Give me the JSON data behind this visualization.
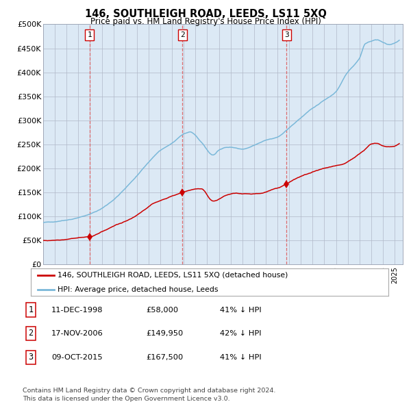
{
  "title": "146, SOUTHLEIGH ROAD, LEEDS, LS11 5XQ",
  "subtitle": "Price paid vs. HM Land Registry's House Price Index (HPI)",
  "background_color": "#ffffff",
  "plot_bg_color": "#dce9f5",
  "hpi_color": "#7ab8d9",
  "price_color": "#cc0000",
  "marker_color": "#cc0000",
  "vline_color": "#dd5555",
  "sale_prices": [
    58000,
    149950,
    167500
  ],
  "sale_labels": [
    "1",
    "2",
    "3"
  ],
  "sale_year_nums": [
    1998.96,
    2006.88,
    2015.77
  ],
  "legend_entries": [
    "146, SOUTHLEIGH ROAD, LEEDS, LS11 5XQ (detached house)",
    "HPI: Average price, detached house, Leeds"
  ],
  "table_rows": [
    [
      "1",
      "11-DEC-1998",
      "£58,000",
      "41% ↓ HPI"
    ],
    [
      "2",
      "17-NOV-2006",
      "£149,950",
      "42% ↓ HPI"
    ],
    [
      "3",
      "09-OCT-2015",
      "£167,500",
      "41% ↓ HPI"
    ]
  ],
  "footer": "Contains HM Land Registry data © Crown copyright and database right 2024.\nThis data is licensed under the Open Government Licence v3.0.",
  "ylim": [
    0,
    500000
  ],
  "yticks": [
    0,
    50000,
    100000,
    150000,
    200000,
    250000,
    300000,
    350000,
    400000,
    450000,
    500000
  ],
  "ytick_labels": [
    "£0",
    "£50K",
    "£100K",
    "£150K",
    "£200K",
    "£250K",
    "£300K",
    "£350K",
    "£400K",
    "£450K",
    "£500K"
  ],
  "xlim_start": 1995.0,
  "xlim_end": 2025.7,
  "hpi_anchors_x": [
    1995.0,
    1996.0,
    1997.0,
    1998.0,
    1999.0,
    2000.0,
    2001.0,
    2002.0,
    2003.0,
    2004.0,
    2005.0,
    2006.0,
    2007.0,
    2007.5,
    2008.5,
    2009.5,
    2010.0,
    2011.0,
    2012.0,
    2013.0,
    2014.0,
    2015.0,
    2016.0,
    2017.0,
    2018.0,
    2019.0,
    2020.0,
    2021.0,
    2022.0,
    2022.5,
    2023.0,
    2023.5,
    2024.0,
    2024.5,
    2025.3
  ],
  "hpi_anchors_y": [
    87000,
    90000,
    93000,
    98000,
    105000,
    117000,
    135000,
    158000,
    185000,
    213000,
    237000,
    252000,
    272000,
    275000,
    255000,
    228000,
    238000,
    245000,
    240000,
    248000,
    258000,
    265000,
    285000,
    305000,
    325000,
    342000,
    360000,
    400000,
    430000,
    460000,
    465000,
    468000,
    462000,
    458000,
    465000
  ],
  "price_anchors_x": [
    1995.0,
    1996.0,
    1997.0,
    1998.0,
    1998.96,
    2000.0,
    2001.0,
    2002.5,
    2003.5,
    2004.5,
    2005.5,
    2006.88,
    2007.5,
    2008.5,
    2009.5,
    2010.5,
    2011.5,
    2012.5,
    2013.5,
    2014.5,
    2015.77,
    2016.5,
    2017.5,
    2018.5,
    2019.5,
    2020.5,
    2021.5,
    2022.5,
    2023.0,
    2023.5,
    2024.0,
    2024.5,
    2025.3
  ],
  "price_anchors_y": [
    50000,
    51000,
    53000,
    56000,
    58000,
    68000,
    80000,
    95000,
    112000,
    128000,
    138000,
    149950,
    155000,
    158000,
    132000,
    143000,
    148000,
    147000,
    148000,
    155000,
    167500,
    178000,
    188000,
    196000,
    203000,
    208000,
    222000,
    240000,
    250000,
    252000,
    248000,
    245000,
    250000
  ]
}
